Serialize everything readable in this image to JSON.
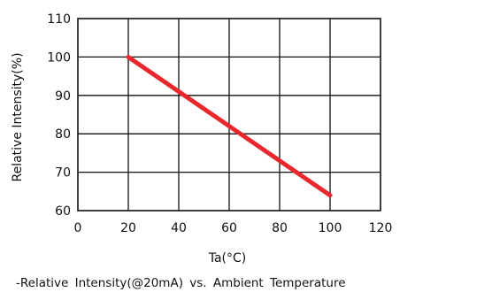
{
  "chart_data": {
    "type": "line",
    "title": "",
    "xlabel": "Ta(°C)",
    "ylabel": "Relative Intensity(%)",
    "xlim": [
      0,
      120
    ],
    "ylim": [
      60,
      110
    ],
    "xticks": [
      0,
      20,
      40,
      60,
      80,
      100,
      120
    ],
    "yticks": [
      60,
      70,
      80,
      90,
      100,
      110
    ],
    "grid": true,
    "legend": "none",
    "series": [
      {
        "x": [
          20,
          100
        ],
        "y": [
          100,
          64
        ],
        "color": "#e8282c"
      }
    ]
  },
  "caption": "-Relative Intensity(@20mA) vs. Ambient Temperature"
}
